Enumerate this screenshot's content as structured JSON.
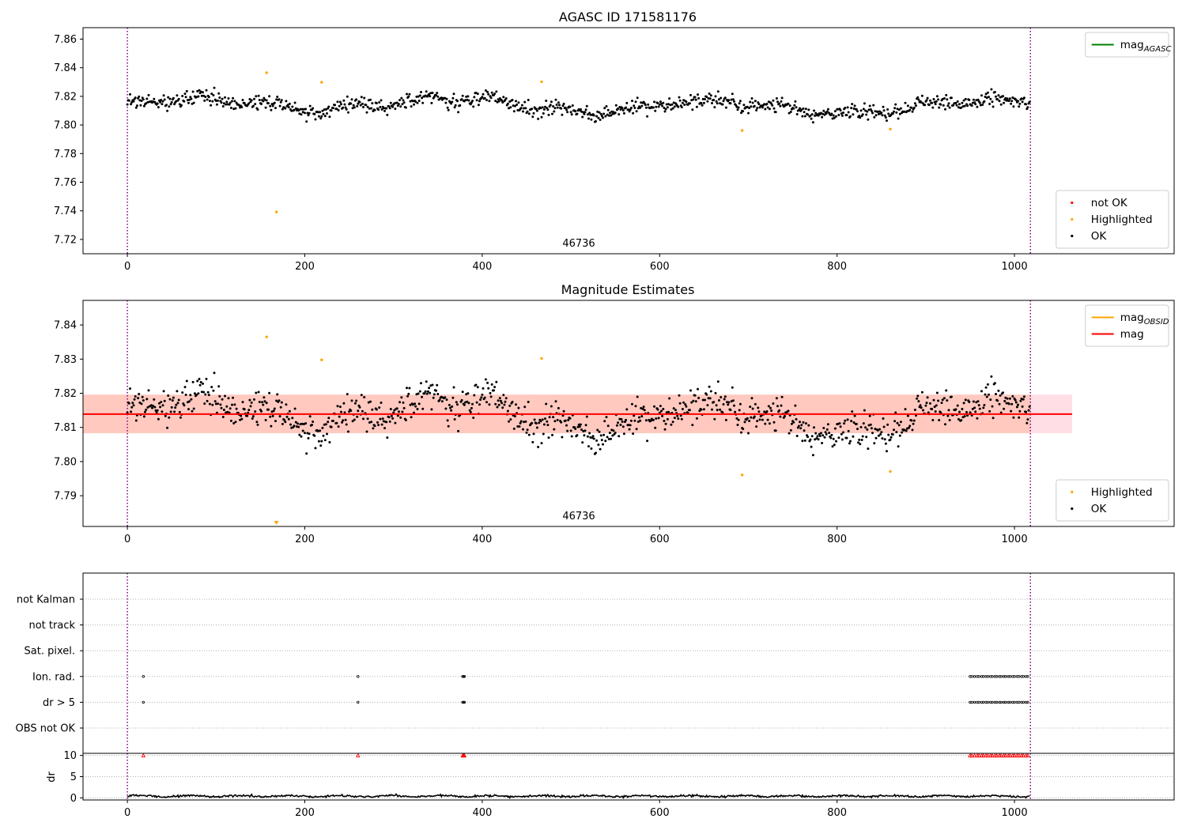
{
  "chart_data": [
    {
      "type": "scatter",
      "title": "AGASC ID 171581176",
      "annotation": "46736",
      "xlim": [
        -50,
        1180
      ],
      "ylim": [
        7.71,
        7.868
      ],
      "xticks": [
        0,
        200,
        400,
        600,
        800,
        1000
      ],
      "yticks": [
        7.72,
        7.74,
        7.76,
        7.78,
        7.8,
        7.82,
        7.84,
        7.86
      ],
      "xtick_labels": [
        "0",
        "200",
        "400",
        "600",
        "800",
        "1000"
      ],
      "ytick_labels": [
        "7.72",
        "7.74",
        "7.76",
        "7.78",
        "7.80",
        "7.82",
        "7.84",
        "7.86"
      ],
      "vlines": [
        0,
        1018
      ],
      "legends": [
        {
          "position": "upper-right",
          "entries": [
            {
              "label": "mag",
              "sub": "AGASC",
              "kind": "line",
              "color": "#008000"
            }
          ]
        },
        {
          "position": "lower-right",
          "entries": [
            {
              "label": "not OK",
              "kind": "point",
              "color": "#ff0000"
            },
            {
              "label": "Highlighted",
              "kind": "point",
              "color": "#ffa500"
            },
            {
              "label": "OK",
              "kind": "point",
              "color": "#000000"
            }
          ]
        }
      ],
      "series": [
        {
          "name": "OK",
          "color": "#000000",
          "generator": {
            "n": 1018,
            "x_start": 0,
            "x_end": 1018,
            "mean": 7.8135,
            "noise": 0.0045,
            "wave": 0.004
          }
        },
        {
          "name": "Highlighted",
          "color": "#ffa500",
          "x": [
            157,
            168,
            219,
            467,
            693,
            860
          ],
          "y": [
            7.8365,
            7.7392,
            7.8298,
            7.8302,
            7.7961,
            7.7971
          ]
        }
      ]
    },
    {
      "type": "scatter",
      "title": "Magnitude Estimates",
      "annotation": "46736",
      "xlim": [
        -50,
        1180
      ],
      "ylim": [
        7.781,
        7.8472
      ],
      "xticks": [
        0,
        200,
        400,
        600,
        800,
        1000
      ],
      "yticks": [
        7.79,
        7.8,
        7.81,
        7.82,
        7.83,
        7.84
      ],
      "xtick_labels": [
        "0",
        "200",
        "400",
        "600",
        "800",
        "1000"
      ],
      "ytick_labels": [
        "7.79",
        "7.80",
        "7.81",
        "7.82",
        "7.83",
        "7.84"
      ],
      "vlines": [
        0,
        1018
      ],
      "mag_line": 7.8139,
      "band_outer": {
        "x": [
          -50,
          1065
        ],
        "y": [
          7.8083,
          7.8196
        ]
      },
      "band_inner": {
        "x": [
          -50,
          1018
        ],
        "y": [
          7.8083,
          7.8196
        ]
      },
      "offscale_marker": {
        "x": 168,
        "color": "#ffa500"
      },
      "legends": [
        {
          "position": "upper-right",
          "entries": [
            {
              "label": "mag",
              "sub": "OBSID",
              "kind": "line",
              "color": "#ffa500"
            },
            {
              "label": "mag",
              "kind": "line",
              "color": "#ff0000"
            }
          ]
        },
        {
          "position": "lower-right",
          "entries": [
            {
              "label": "Highlighted",
              "kind": "point",
              "color": "#ffa500"
            },
            {
              "label": "OK",
              "kind": "point",
              "color": "#000000"
            }
          ]
        }
      ],
      "series": [
        {
          "name": "OK",
          "color": "#000000",
          "generator": "same-as-panel-1"
        },
        {
          "name": "Highlighted",
          "color": "#ffa500",
          "x": [
            157,
            219,
            467,
            693,
            860
          ],
          "y": [
            7.8365,
            7.8298,
            7.8302,
            7.7961,
            7.7971
          ]
        }
      ]
    },
    {
      "type": "scatter",
      "title": "",
      "categories": [
        "not Kalman",
        "not track",
        "Sat. pixel.",
        "Ion. rad.",
        "dr > 5",
        "OBS not OK"
      ],
      "vlines": [
        0,
        1018
      ],
      "flags": {
        "Ion. rad.": [
          18,
          260,
          378,
          379,
          380,
          950,
          952,
          955,
          958,
          960,
          963,
          965,
          968,
          970,
          973,
          975,
          978,
          980,
          983,
          985,
          988,
          990,
          993,
          995,
          998,
          1000,
          1003,
          1005,
          1008,
          1010,
          1013,
          1015
        ],
        "dr > 5": [
          18,
          260,
          378,
          379,
          380,
          950,
          952,
          955,
          958,
          960,
          963,
          965,
          968,
          970,
          973,
          975,
          978,
          980,
          983,
          985,
          988,
          990,
          993,
          995,
          998,
          1000,
          1003,
          1005,
          1008,
          1010,
          1013,
          1015
        ]
      }
    },
    {
      "type": "line",
      "ylabel": "dr",
      "ylim": [
        -0.5,
        10.5
      ],
      "yticks": [
        0,
        5,
        10
      ],
      "ytick_labels": [
        "0",
        "5",
        "10"
      ],
      "xticks": [
        0,
        200,
        400,
        600,
        800,
        1000
      ],
      "xtick_labels": [
        "0",
        "200",
        "400",
        "600",
        "800",
        "1000"
      ],
      "vlines": [
        0,
        1018
      ],
      "clipped_markers": {
        "y": 10,
        "color": "#ff0000",
        "x": [
          18,
          260,
          378,
          379,
          380,
          950,
          952,
          955,
          958,
          960,
          963,
          965,
          968,
          970,
          973,
          975,
          978,
          980,
          983,
          985,
          988,
          990,
          993,
          995,
          998,
          1000,
          1003,
          1005,
          1008,
          1010,
          1013,
          1015
        ]
      },
      "series": [
        {
          "name": "dr",
          "color": "#000000",
          "generator": {
            "n": 1018,
            "mean": 0.4,
            "noise": 0.2
          }
        }
      ]
    }
  ]
}
